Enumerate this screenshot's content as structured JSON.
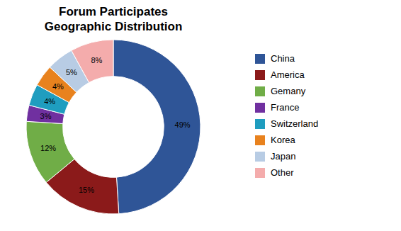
{
  "chart_data": {
    "type": "donut",
    "title": "Forum Participates",
    "subtitle": "Geographic Distribution",
    "categories": [
      "China",
      "America",
      "Gemany",
      "France",
      "Switzerland",
      "Korea",
      "Japan",
      "Other"
    ],
    "values": [
      49,
      15,
      12,
      3,
      4,
      4,
      5,
      8
    ],
    "value_labels": [
      "49%",
      "15%",
      "12%",
      "3%",
      "4%",
      "4%",
      "5%",
      "8%"
    ],
    "colors": [
      "#2F5597",
      "#8B1A1A",
      "#70AD47",
      "#7030A0",
      "#1F9DBF",
      "#E8821E",
      "#B8CCE4",
      "#F4ACAC"
    ],
    "data_labels": true,
    "legend": "right"
  }
}
